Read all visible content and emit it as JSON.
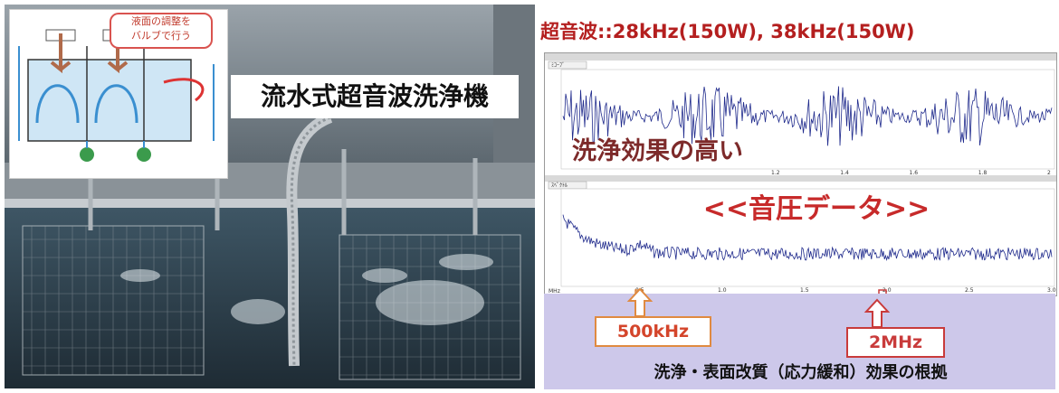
{
  "photo": {
    "title": "流水式超音波洗浄機",
    "valve_note": "液面の調整を\nバルブで行う"
  },
  "spectrum": {
    "ultrasonic_spec": "超音波::28kHz(150W), 38kHz(150W)",
    "effect_label": "洗浄効果の高い",
    "pressure_label": "<<音圧データ>>",
    "marker_low": "500kHz",
    "marker_high": "2MHz",
    "basis_label": "洗浄・表面改質（応力緩和）効果の根拠",
    "top_tab": "ﾐｺｰﾌﾞ",
    "bottom_tab": "ｽﾍﾟｸﾄﾙ",
    "top_x_ticks": [
      "1.2",
      "1.4",
      "1.6",
      "1.8",
      "2"
    ],
    "bottom_x_ticks": [
      "0.5",
      "1.0",
      "1.5",
      "2.0",
      "2.5",
      "3.0"
    ],
    "bottom_unit": "MHz"
  },
  "colors": {
    "accent_red": "#c72a2a",
    "waveform": "#1f2a8c",
    "panel_purple": "#cdc8ea"
  }
}
